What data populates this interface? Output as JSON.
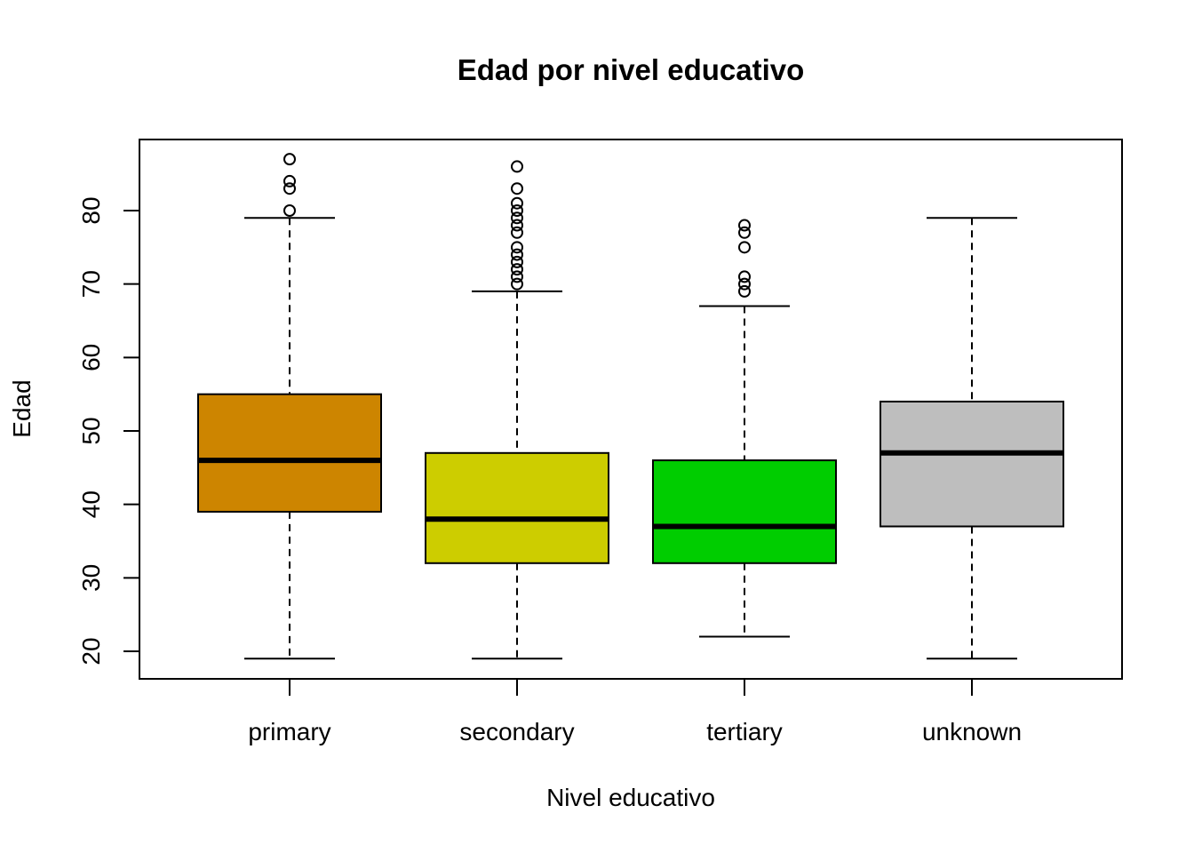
{
  "chart_data": {
    "type": "box",
    "title": "Edad por nivel educativo",
    "xlabel": "Nivel educativo",
    "ylabel": "Edad",
    "ylim": [
      16,
      89
    ],
    "yticks": [
      20,
      30,
      40,
      50,
      60,
      70,
      80
    ],
    "grid": false,
    "legend": null,
    "categories": [
      "primary",
      "secondary",
      "tertiary",
      "unknown"
    ],
    "series": [
      {
        "name": "primary",
        "color": "#CD8500",
        "whisker_low": 19,
        "q1": 39,
        "median": 46,
        "q3": 55,
        "whisker_high": 79,
        "outliers": [
          80,
          83,
          84,
          87
        ]
      },
      {
        "name": "secondary",
        "color": "#CDCD00",
        "whisker_low": 19,
        "q1": 32,
        "median": 38,
        "q3": 47,
        "whisker_high": 69,
        "outliers": [
          70,
          71,
          72,
          73,
          74,
          75,
          77,
          78,
          79,
          80,
          81,
          83,
          86
        ]
      },
      {
        "name": "tertiary",
        "color": "#00CD00",
        "whisker_low": 22,
        "q1": 32,
        "median": 37,
        "q3": 46,
        "whisker_high": 67,
        "outliers": [
          69,
          70,
          71,
          75,
          77,
          78
        ]
      },
      {
        "name": "unknown",
        "color": "#BEBEBE",
        "whisker_low": 19,
        "q1": 37,
        "median": 47,
        "q3": 54,
        "whisker_high": 79,
        "outliers": []
      }
    ]
  }
}
